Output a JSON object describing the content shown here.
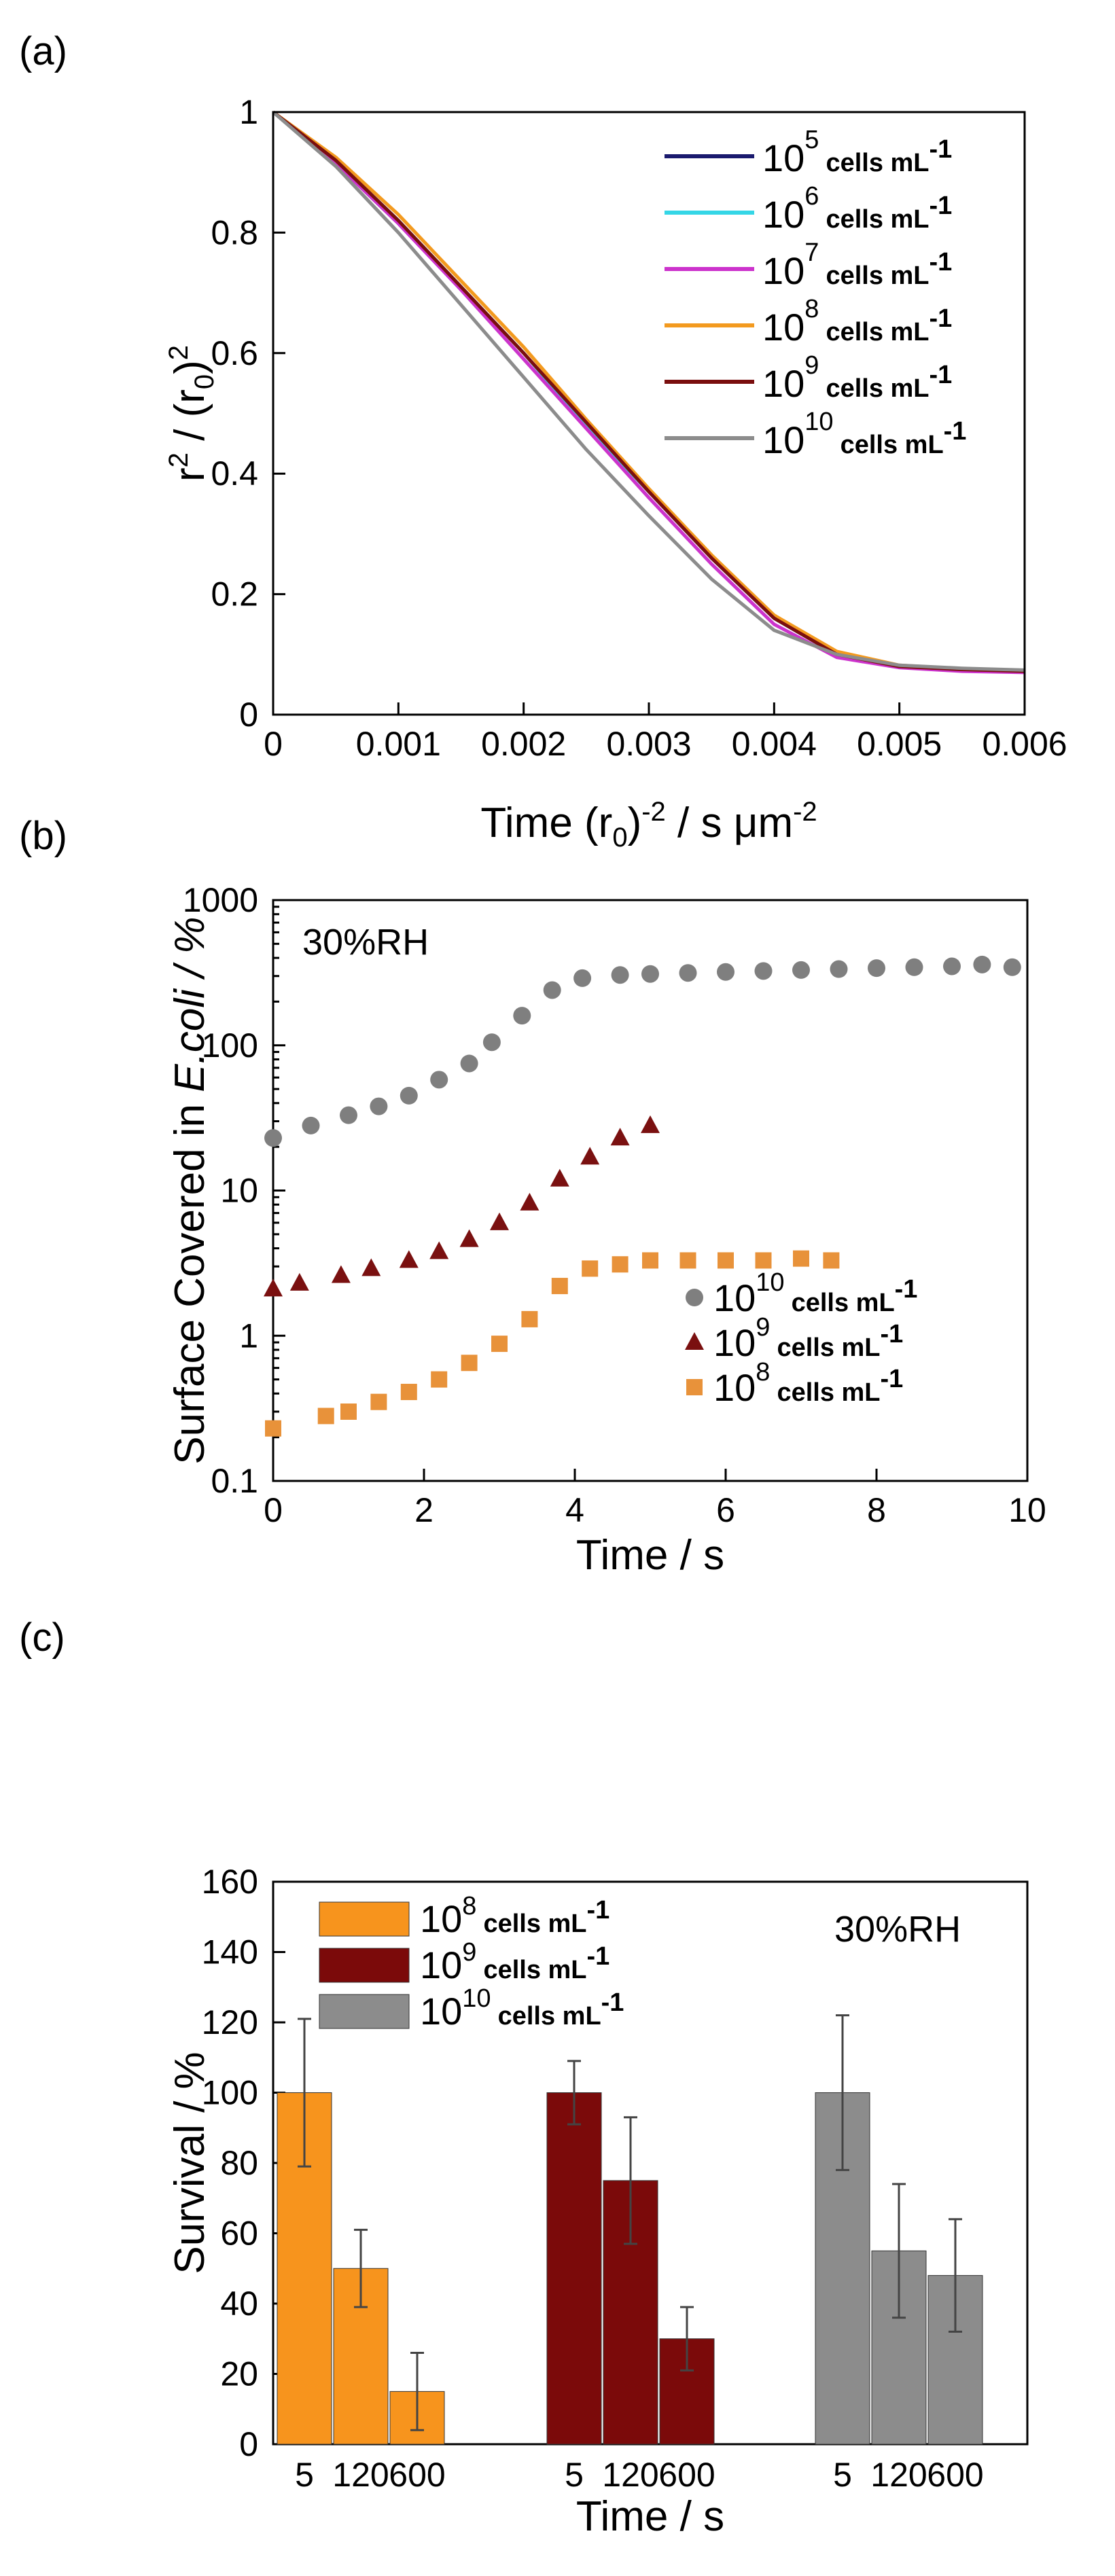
{
  "chart_data": [
    {
      "panel": "(a)",
      "type": "line",
      "xlabel": "Time (r0)-2 / s μm-2",
      "ylabel": "r2 / (r0)2",
      "xlim": [
        0,
        0.006
      ],
      "ylim": [
        0,
        1
      ],
      "xticks": [
        "0",
        "0.001",
        "0.002",
        "0.003",
        "0.004",
        "0.005",
        "0.006"
      ],
      "yticks": [
        "0",
        "0.2",
        "0.4",
        "0.6",
        "0.8",
        "1"
      ],
      "legend_position": "top-right",
      "legend_unit": "cells mL",
      "series": [
        {
          "name": "10^5",
          "exp": "5",
          "color": "#1a1a6e",
          "x": [
            0,
            0.0005,
            0.001,
            0.0015,
            0.002,
            0.0025,
            0.003,
            0.0035,
            0.004,
            0.0045,
            0.005,
            0.0055,
            0.006
          ],
          "y": [
            1.0,
            0.92,
            0.82,
            0.71,
            0.6,
            0.48,
            0.37,
            0.26,
            0.16,
            0.1,
            0.08,
            0.075,
            0.072
          ]
        },
        {
          "name": "10^6",
          "exp": "6",
          "color": "#35d6e6",
          "x": [
            0,
            0.0005,
            0.001,
            0.0015,
            0.002,
            0.0025,
            0.003,
            0.0035,
            0.004,
            0.0045,
            0.005,
            0.0055,
            0.006
          ],
          "y": [
            1.0,
            0.92,
            0.82,
            0.71,
            0.6,
            0.48,
            0.37,
            0.26,
            0.16,
            0.1,
            0.08,
            0.075,
            0.072
          ]
        },
        {
          "name": "10^7",
          "exp": "7",
          "color": "#cc33cc",
          "x": [
            0,
            0.0005,
            0.001,
            0.0015,
            0.002,
            0.0025,
            0.003,
            0.0035,
            0.004,
            0.0045,
            0.005,
            0.0055,
            0.006
          ],
          "y": [
            1.0,
            0.915,
            0.815,
            0.705,
            0.59,
            0.475,
            0.36,
            0.25,
            0.15,
            0.095,
            0.078,
            0.072,
            0.07
          ]
        },
        {
          "name": "10^8",
          "exp": "8",
          "color": "#f39a1f",
          "x": [
            0,
            0.0005,
            0.001,
            0.0015,
            0.002,
            0.0025,
            0.003,
            0.0035,
            0.004,
            0.0045,
            0.005,
            0.0055,
            0.006
          ],
          "y": [
            1.0,
            0.925,
            0.83,
            0.72,
            0.61,
            0.49,
            0.375,
            0.265,
            0.165,
            0.105,
            0.082,
            0.076,
            0.073
          ]
        },
        {
          "name": "10^9",
          "exp": "9",
          "color": "#7a0e0e",
          "x": [
            0,
            0.0005,
            0.001,
            0.0015,
            0.002,
            0.0025,
            0.003,
            0.0035,
            0.004,
            0.0045,
            0.005,
            0.0055,
            0.006
          ],
          "y": [
            1.0,
            0.92,
            0.82,
            0.71,
            0.6,
            0.485,
            0.37,
            0.26,
            0.16,
            0.1,
            0.08,
            0.075,
            0.072
          ]
        },
        {
          "name": "10^10",
          "exp": "10",
          "color": "#8c8c8c",
          "x": [
            0,
            0.0005,
            0.001,
            0.0015,
            0.002,
            0.0025,
            0.003,
            0.0035,
            0.004,
            0.0045,
            0.005,
            0.0055,
            0.006
          ],
          "y": [
            1.0,
            0.91,
            0.8,
            0.68,
            0.56,
            0.44,
            0.33,
            0.225,
            0.14,
            0.1,
            0.082,
            0.077,
            0.074
          ]
        }
      ]
    },
    {
      "panel": "(b)",
      "type": "scatter",
      "yscale": "log",
      "xlabel": "Time / s",
      "ylabel": "Surface Covered in E.coli / %",
      "ylabel_plain": "Surface Covered in",
      "ylabel_italic": "E.coli / %",
      "xlim": [
        0,
        10
      ],
      "ylim": [
        0.1,
        1000
      ],
      "xticks": [
        "0",
        "2",
        "4",
        "6",
        "8",
        "10"
      ],
      "yticks": [
        "0.1",
        "1",
        "10",
        "100",
        "1000"
      ],
      "annotation": "30%RH",
      "legend_position": "bottom-right",
      "legend_unit": "cells mL",
      "series": [
        {
          "name": "10^10",
          "exp": "10",
          "marker": "circle",
          "color": "#7f7f7f",
          "x": [
            0,
            0.5,
            1.0,
            1.4,
            1.8,
            2.2,
            2.6,
            2.9,
            3.3,
            3.7,
            4.1,
            4.6,
            5.0,
            5.5,
            6.0,
            6.5,
            7.0,
            7.5,
            8.0,
            8.5,
            9.0,
            9.4,
            9.8
          ],
          "y": [
            23,
            28,
            33,
            38,
            45,
            58,
            75,
            105,
            160,
            240,
            290,
            305,
            310,
            315,
            320,
            325,
            330,
            335,
            340,
            345,
            350,
            360,
            345
          ]
        },
        {
          "name": "10^9",
          "exp": "9",
          "marker": "triangle",
          "color": "#7a1010",
          "x": [
            0,
            0.35,
            0.9,
            1.3,
            1.8,
            2.2,
            2.6,
            3.0,
            3.4,
            3.8,
            4.2,
            4.6,
            5.0
          ],
          "y": [
            2.1,
            2.3,
            2.6,
            2.9,
            3.3,
            3.8,
            4.6,
            6.0,
            8.2,
            12,
            17,
            23,
            28
          ]
        },
        {
          "name": "10^8",
          "exp": "8",
          "marker": "square",
          "color": "#e8923a",
          "x": [
            0,
            0.7,
            1.0,
            1.4,
            1.8,
            2.2,
            2.6,
            3.0,
            3.4,
            3.8,
            4.2,
            4.6,
            5.0,
            5.5,
            6.0,
            6.5,
            7.0,
            7.4
          ],
          "y": [
            0.23,
            0.28,
            0.3,
            0.35,
            0.41,
            0.5,
            0.65,
            0.88,
            1.3,
            2.2,
            2.9,
            3.1,
            3.3,
            3.3,
            3.3,
            3.3,
            3.4,
            3.3
          ]
        }
      ]
    },
    {
      "panel": "(c)",
      "type": "bar",
      "xlabel": "Time / s",
      "ylabel": "Survival / %",
      "ylim": [
        0,
        160
      ],
      "yticks": [
        "0",
        "20",
        "40",
        "60",
        "80",
        "100",
        "120",
        "140",
        "160"
      ],
      "annotation": "30%RH",
      "legend_position": "top-left",
      "legend_unit": "cells mL",
      "group_categories": [
        "5",
        "120",
        "600"
      ],
      "series": [
        {
          "name": "10^8",
          "exp": "8",
          "color": "#f7941d",
          "values": [
            100,
            50,
            15
          ],
          "errors": [
            21,
            11,
            11
          ]
        },
        {
          "name": "10^9",
          "exp": "9",
          "color": "#7b0a0a",
          "values": [
            100,
            75,
            30
          ],
          "errors": [
            9,
            18,
            9
          ]
        },
        {
          "name": "10^10",
          "exp": "10",
          "color": "#8c8c8c",
          "values": [
            100,
            55,
            48
          ],
          "errors": [
            22,
            19,
            16
          ]
        }
      ]
    }
  ]
}
